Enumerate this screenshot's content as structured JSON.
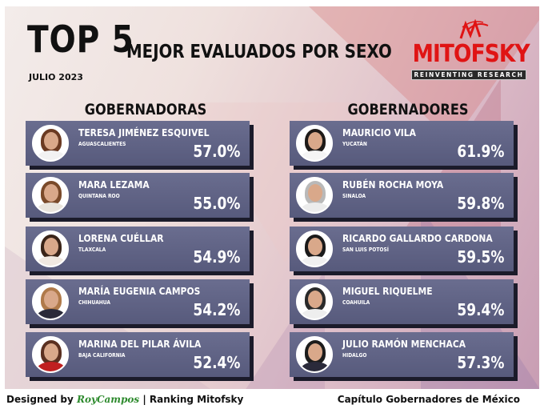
{
  "header": {
    "title_big": "TOP 5",
    "title_rest": "MEJOR EVALUADOS POR SEXO",
    "date": "JULIO 2023"
  },
  "logo": {
    "wordmark": "MITOFSKY",
    "tagline": "REINVENTING RESEARCH",
    "color": "#e01414"
  },
  "columns": {
    "left_title": "GOBERNADORAS",
    "right_title": "GOBERNADORES"
  },
  "gobernadoras": [
    {
      "name": "TERESA JIMÉNEZ ESQUIVEL",
      "state": "AGUASCALIENTES",
      "pct": "57.0%",
      "hair": "#6b3a22",
      "outfit": "#f2f2f2"
    },
    {
      "name": "MARA LEZAMA",
      "state": "QUINTANA ROO",
      "pct": "55.0%",
      "hair": "#7a4a2a",
      "outfit": "#e9e4dc"
    },
    {
      "name": "LORENA CUÉLLAR",
      "state": "TLAXCALA",
      "pct": "54.9%",
      "hair": "#3a2418",
      "outfit": "#f0e8e0"
    },
    {
      "name": "MARÍA EUGENIA CAMPOS",
      "state": "CHIHUAHUA",
      "pct": "54.2%",
      "hair": "#b07a4a",
      "outfit": "#2a2a3a"
    },
    {
      "name": "MARINA DEL PILAR ÁVILA",
      "state": "BAJA CALIFORNIA",
      "pct": "52.4%",
      "hair": "#5a3020",
      "outfit": "#c02020"
    }
  ],
  "gobernadores": [
    {
      "name": "MAURICIO VILA",
      "state": "YUCATÁN",
      "pct": "61.9%",
      "hair": "#1e1a18",
      "outfit": "#f5f5f5"
    },
    {
      "name": "RUBÉN ROCHA MOYA",
      "state": "SINALOA",
      "pct": "59.8%",
      "hair": "#b9b9b9",
      "outfit": "#ececec"
    },
    {
      "name": "RICARDO GALLARDO CARDONA",
      "state": "SAN LUIS POTOSÍ",
      "pct": "59.5%",
      "hair": "#1a1a1a",
      "outfit": "#f0f0f0"
    },
    {
      "name": "MIGUEL RIQUELME",
      "state": "COAHUILA",
      "pct": "59.4%",
      "hair": "#2a2a2a",
      "outfit": "#eeeeee"
    },
    {
      "name": "JULIO RAMÓN MENCHACA",
      "state": "HIDALGO",
      "pct": "57.3%",
      "hair": "#1c1c1c",
      "outfit": "#2a2a3a"
    }
  ],
  "footer": {
    "designed_by": "Designed by",
    "signature": "RoyCampos",
    "separator": "| Ranking Mitofsky",
    "right_text": "Capítulo Gobernadores de México"
  }
}
